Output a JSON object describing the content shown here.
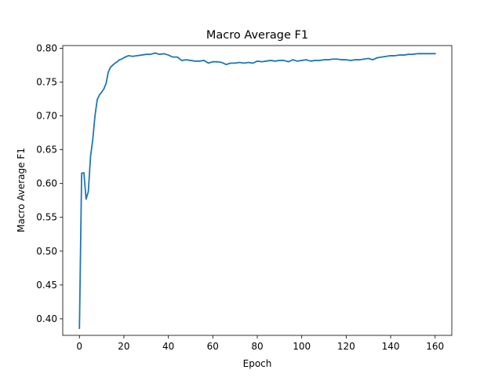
{
  "chart_data": {
    "type": "line",
    "title": "Macro Average F1",
    "xlabel": "Epoch",
    "ylabel": "Macro Average F1",
    "xlim": [
      -7.5,
      167.5
    ],
    "ylim": [
      0.3755,
      0.804
    ],
    "xticks": [
      0,
      20,
      40,
      60,
      80,
      100,
      120,
      140,
      160
    ],
    "xtick_labels": [
      "0",
      "20",
      "40",
      "60",
      "80",
      "100",
      "120",
      "140",
      "160"
    ],
    "yticks": [
      0.4,
      0.45,
      0.5,
      0.55,
      0.6,
      0.65,
      0.7,
      0.75,
      0.8
    ],
    "ytick_labels": [
      "0.40",
      "0.45",
      "0.50",
      "0.55",
      "0.60",
      "0.65",
      "0.70",
      "0.75",
      "0.80"
    ],
    "grid": false,
    "series": [
      {
        "color": "#1f77b4",
        "x": [
          0,
          1,
          2,
          3,
          4,
          5,
          6,
          7,
          8,
          9,
          10,
          11,
          12,
          13,
          14,
          15,
          16,
          17,
          18,
          19,
          20,
          22,
          24,
          26,
          28,
          30,
          32,
          34,
          35,
          36,
          38,
          40,
          42,
          44,
          46,
          48,
          50,
          52,
          54,
          56,
          58,
          60,
          62,
          64,
          66,
          68,
          70,
          72,
          74,
          76,
          78,
          80,
          82,
          84,
          86,
          88,
          90,
          92,
          94,
          96,
          98,
          100,
          102,
          104,
          106,
          108,
          110,
          112,
          114,
          116,
          118,
          120,
          122,
          124,
          126,
          128,
          130,
          132,
          134,
          136,
          138,
          140,
          142,
          144,
          146,
          148,
          150,
          152,
          154,
          156,
          158,
          160
        ],
        "y": [
          0.386,
          0.615,
          0.616,
          0.577,
          0.588,
          0.64,
          0.665,
          0.7,
          0.724,
          0.731,
          0.735,
          0.74,
          0.748,
          0.765,
          0.772,
          0.775,
          0.778,
          0.78,
          0.783,
          0.784,
          0.786,
          0.789,
          0.788,
          0.789,
          0.79,
          0.791,
          0.791,
          0.793,
          0.792,
          0.791,
          0.792,
          0.79,
          0.787,
          0.787,
          0.782,
          0.783,
          0.782,
          0.781,
          0.781,
          0.782,
          0.778,
          0.78,
          0.78,
          0.779,
          0.776,
          0.778,
          0.778,
          0.779,
          0.778,
          0.779,
          0.778,
          0.781,
          0.78,
          0.781,
          0.782,
          0.781,
          0.782,
          0.782,
          0.78,
          0.783,
          0.781,
          0.782,
          0.783,
          0.781,
          0.782,
          0.782,
          0.783,
          0.783,
          0.784,
          0.784,
          0.783,
          0.783,
          0.782,
          0.783,
          0.783,
          0.784,
          0.785,
          0.783,
          0.786,
          0.787,
          0.788,
          0.789,
          0.789,
          0.79,
          0.79,
          0.791,
          0.791,
          0.792,
          0.792,
          0.792,
          0.792,
          0.792
        ]
      }
    ]
  }
}
